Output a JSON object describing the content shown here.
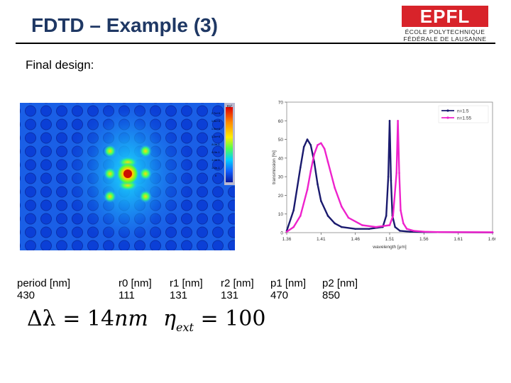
{
  "slide": {
    "title": "FDTD – Example (3)",
    "subtitle": "Final design:"
  },
  "logo": {
    "mark": "EPFL",
    "line1": "ÉCOLE POLYTECHNIQUE",
    "line2": "FÉDÉRALE DE LAUSANNE"
  },
  "simulation": {
    "colorbar_title": "Ey²",
    "colorbar_values": [
      "2.7e+0",
      "1.9e+0",
      "1.5e+0",
      "1.2e+0",
      "8.0e-1",
      "6.0e-1",
      "4.0e-1",
      "2.0e-1",
      "0"
    ]
  },
  "params": {
    "headers": [
      "period [nm]",
      "r0 [nm]",
      "r1 [nm]",
      "r2 [nm]",
      "p1 [nm]",
      "p2 [nm]"
    ],
    "values": [
      "430",
      "111",
      "131",
      "131",
      "470",
      "850"
    ]
  },
  "equations": {
    "delta_lambda": {
      "lhs": "Δλ",
      "value": "14",
      "unit": "nm"
    },
    "eta": {
      "symbol": "η",
      "subscript": "ext",
      "value": "100"
    }
  },
  "chart_data": {
    "type": "line",
    "title": "",
    "xlabel": "wavelength [μm]",
    "ylabel": "transmission [%]",
    "xlim": [
      1.36,
      1.66
    ],
    "ylim": [
      0,
      70
    ],
    "xticks": [
      "1.36",
      "1.41",
      "1.46",
      "1.51",
      "1.56",
      "1.61",
      "1.66"
    ],
    "yticks": [
      "0",
      "10",
      "20",
      "30",
      "40",
      "50",
      "60",
      "70"
    ],
    "legend_position": "top-right",
    "series": [
      {
        "name": "n=1.5",
        "color": "#1a1a6e",
        "x": [
          1.36,
          1.37,
          1.38,
          1.385,
          1.39,
          1.395,
          1.4,
          1.405,
          1.41,
          1.42,
          1.43,
          1.44,
          1.46,
          1.48,
          1.5,
          1.505,
          1.508,
          1.51,
          1.512,
          1.514,
          1.518,
          1.525,
          1.54,
          1.56,
          1.66
        ],
        "y": [
          1,
          12,
          35,
          46,
          50,
          47,
          38,
          26,
          17,
          9,
          5,
          3,
          2,
          2,
          3,
          9,
          30,
          60,
          28,
          9,
          3,
          1,
          0.5,
          0.3,
          0.1
        ]
      },
      {
        "name": "n=1.55",
        "color": "#ee22cc",
        "x": [
          1.36,
          1.37,
          1.38,
          1.39,
          1.395,
          1.4,
          1.405,
          1.41,
          1.415,
          1.42,
          1.43,
          1.44,
          1.45,
          1.47,
          1.49,
          1.51,
          1.515,
          1.52,
          1.522,
          1.524,
          1.526,
          1.53,
          1.535,
          1.545,
          1.56,
          1.58,
          1.66
        ],
        "y": [
          0.5,
          3,
          9,
          23,
          33,
          42,
          47,
          48,
          45,
          38,
          24,
          14,
          8,
          4,
          3,
          4,
          9,
          32,
          60,
          32,
          12,
          5,
          2,
          1,
          0.5,
          0.3,
          0.2
        ]
      }
    ]
  }
}
